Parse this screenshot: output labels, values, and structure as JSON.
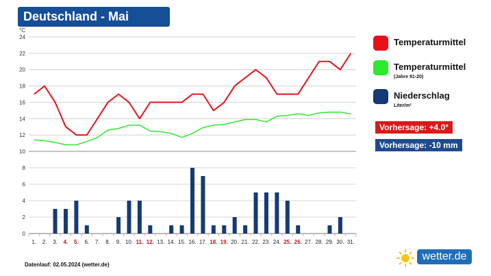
{
  "title": "Deutschland - Mai",
  "legend": [
    {
      "label": "Temperaturmittel",
      "sub": "",
      "color": "#e8111a"
    },
    {
      "label": "Temperaturmittel",
      "sub": "(Jahre 91-20)",
      "color": "#2ee82e"
    },
    {
      "label": "Niederschlag",
      "sub": "Liter/m²",
      "color": "#163a73"
    }
  ],
  "forecast_temp": {
    "text": "Vorhersage: +4.0°",
    "color": "#d91a1a"
  },
  "forecast_precip": {
    "text": "Vorhersage: -10 mm",
    "color": "#1f4b8c"
  },
  "footer": "Datenlauf: 02.05.2024 (wetter.de)",
  "brand": {
    "name": "wetter.de",
    "color": "#1e6fb8",
    "sun_color": "#f5c518"
  },
  "chart_data": {
    "type": "line+bar",
    "x": [
      "1.",
      "2.",
      "3.",
      "4.",
      "5.",
      "6.",
      "7.",
      "8.",
      "9.",
      "10.",
      "11.",
      "12.",
      "13.",
      "14.",
      "15.",
      "16.",
      "17.",
      "18.",
      "19.",
      "20.",
      "21.",
      "22.",
      "23.",
      "24.",
      "25.",
      "26.",
      "27.",
      "28.",
      "29.",
      "30.",
      "31."
    ],
    "highlight_days": [
      "4.",
      "5.",
      "11.",
      "12.",
      "18.",
      "19.",
      "25.",
      "26."
    ],
    "highlight_color": "#c0121b",
    "y_unit": "°C",
    "temp_axis": {
      "ticks": [
        10,
        12,
        14,
        16,
        18,
        20,
        22,
        24
      ],
      "ylim": [
        10,
        24
      ]
    },
    "precip_axis": {
      "ticks": [
        0,
        2,
        4,
        6,
        8
      ],
      "ylim": [
        0,
        9
      ]
    },
    "grid": true,
    "series": [
      {
        "type": "line",
        "values": [
          17,
          18,
          16,
          13,
          12,
          12,
          14,
          16,
          17,
          16,
          14,
          16,
          16,
          16,
          16,
          17,
          17,
          15,
          16,
          18,
          19,
          20,
          19,
          17,
          17,
          17,
          19,
          21,
          21,
          20,
          22
        ]
      },
      {
        "type": "line",
        "values": [
          11.4,
          11.3,
          11.1,
          10.8,
          10.8,
          11.2,
          11.7,
          12.6,
          12.8,
          13.2,
          13.2,
          12.5,
          12.4,
          12.2,
          11.7,
          12.2,
          12.9,
          13.2,
          13.3,
          13.6,
          13.9,
          13.9,
          13.6,
          14.3,
          14.4,
          14.6,
          14.4,
          14.7,
          14.8,
          14.8,
          14.6
        ]
      },
      {
        "type": "bar",
        "values": [
          0,
          0,
          3,
          3,
          4,
          1,
          0,
          0,
          2,
          4,
          4,
          1,
          0,
          1,
          1,
          8,
          7,
          1,
          1,
          2,
          1,
          5,
          5,
          5,
          4,
          1,
          0,
          0,
          1,
          2,
          0
        ]
      }
    ]
  }
}
